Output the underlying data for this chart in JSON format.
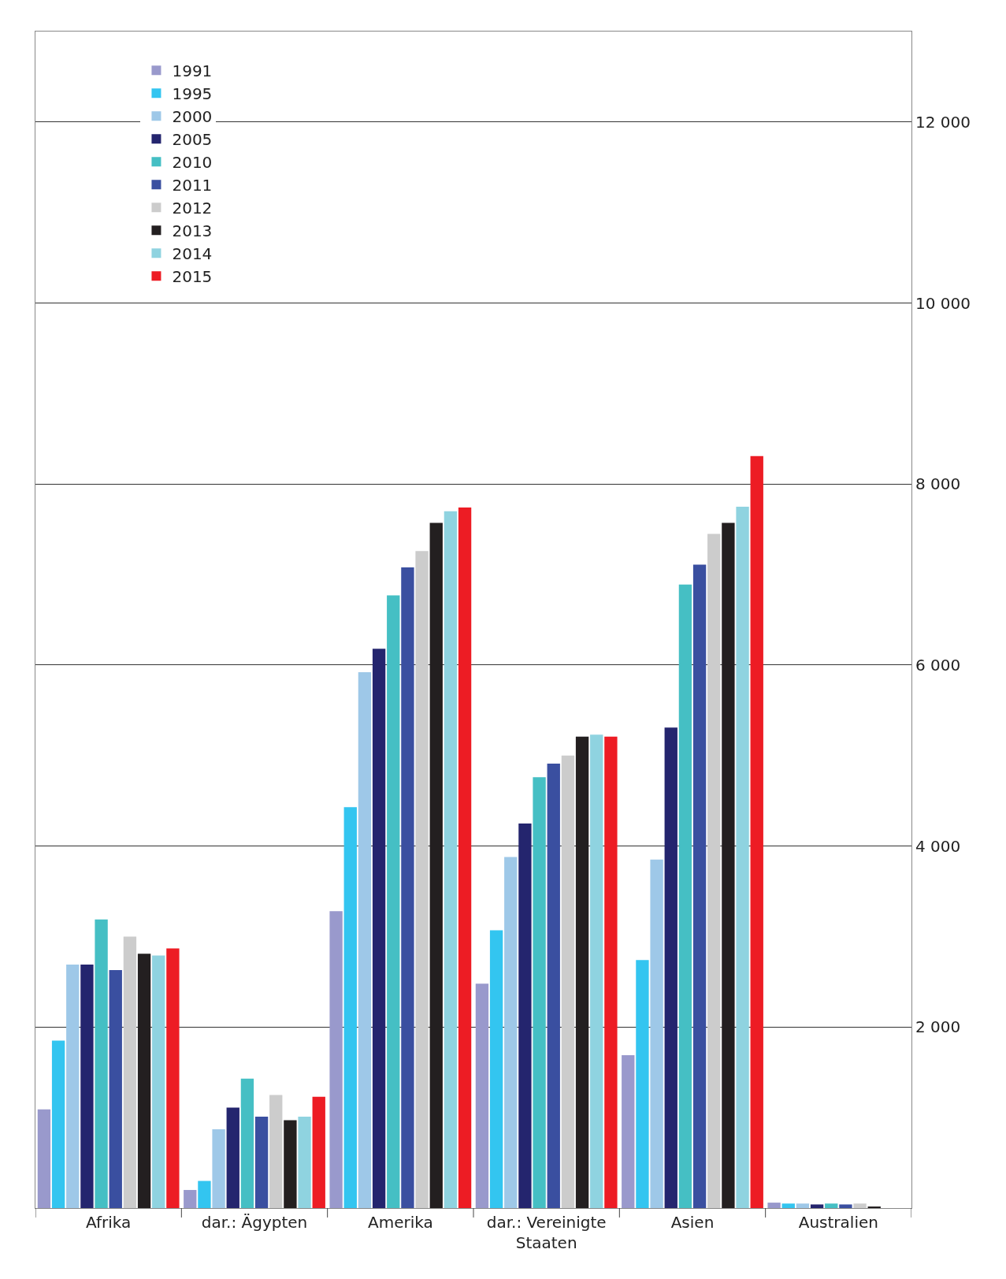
{
  "chart_data": {
    "type": "bar",
    "categories": [
      "Afrika",
      "dar.: Ägypten",
      "Amerika",
      "dar.: Vereinigte Staaten",
      "Asien",
      "Australien"
    ],
    "series": [
      {
        "name": "1991",
        "color": "#9999cc",
        "values": [
          1090,
          200,
          3280,
          2480,
          1690,
          60
        ]
      },
      {
        "name": "1995",
        "color": "#33c5f0",
        "values": [
          1850,
          300,
          4430,
          3070,
          2740,
          50
        ]
      },
      {
        "name": "2000",
        "color": "#9ec8e8",
        "values": [
          2690,
          870,
          5920,
          3880,
          3850,
          50
        ]
      },
      {
        "name": "2005",
        "color": "#24256e",
        "values": [
          2690,
          1110,
          6180,
          4250,
          5310,
          40
        ]
      },
      {
        "name": "2010",
        "color": "#45bfc4",
        "values": [
          3190,
          1430,
          6770,
          4760,
          6890,
          50
        ]
      },
      {
        "name": "2011",
        "color": "#3a4fa0",
        "values": [
          2630,
          1010,
          7080,
          4910,
          7110,
          40
        ]
      },
      {
        "name": "2012",
        "color": "#cccccc",
        "values": [
          3000,
          1250,
          7260,
          5000,
          7450,
          50
        ]
      },
      {
        "name": "2013",
        "color": "#231f20",
        "values": [
          2810,
          970,
          7570,
          5210,
          7570,
          10
        ]
      },
      {
        "name": "2014",
        "color": "#8fd3e0",
        "values": [
          2790,
          1010,
          7700,
          5230,
          7750,
          null
        ]
      },
      {
        "name": "2015",
        "color": "#ed1c24",
        "values": [
          2870,
          1230,
          7740,
          5210,
          8310,
          null
        ]
      }
    ],
    "ylim": [
      0,
      13000
    ],
    "yticks": [
      {
        "value": 2000,
        "label": "2 000"
      },
      {
        "value": 4000,
        "label": "4 000"
      },
      {
        "value": 6000,
        "label": "6 000"
      },
      {
        "value": 8000,
        "label": "8 000"
      },
      {
        "value": 10000,
        "label": "10 000"
      },
      {
        "value": 12000,
        "label": "12 000"
      }
    ],
    "grid": "y",
    "legend": "top left"
  }
}
